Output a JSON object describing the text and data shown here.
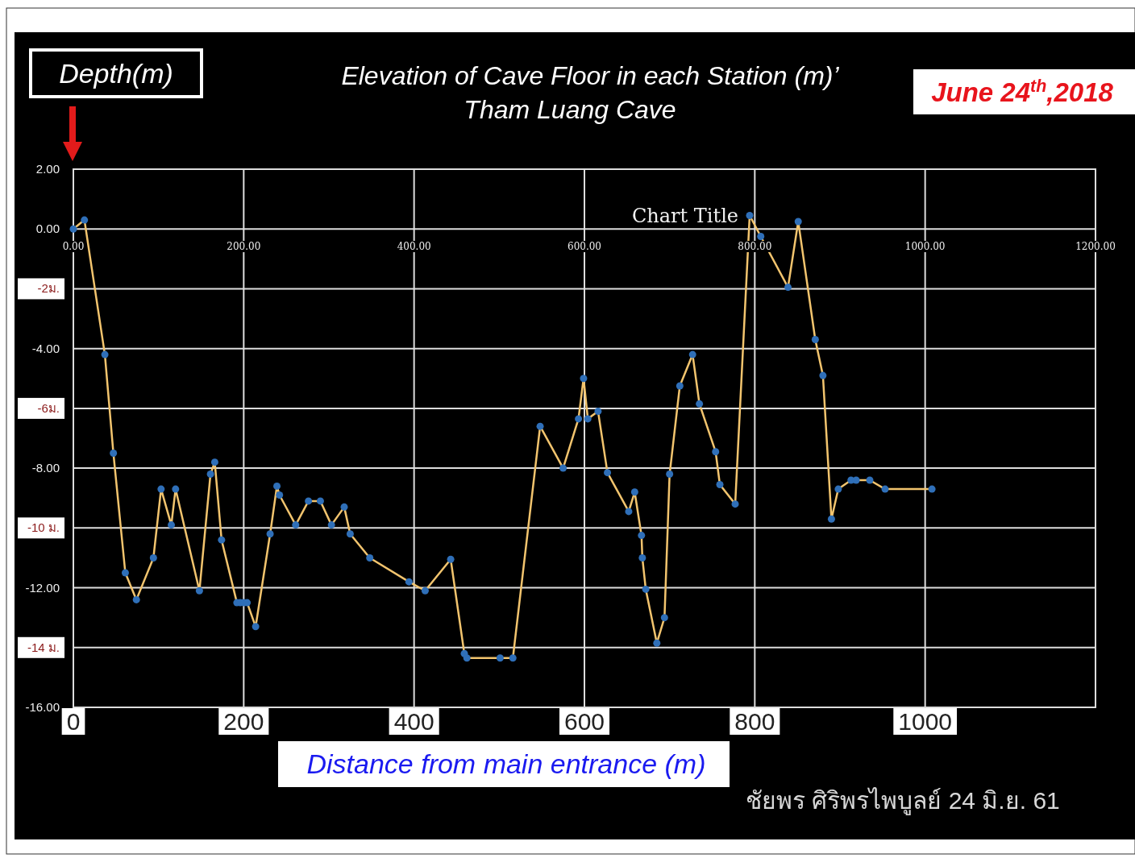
{
  "chart_data": {
    "type": "line",
    "title": "Elevation of Cave Floor in each Station (m)’",
    "subtitle": "Tham Luang Cave",
    "xlabel": "Distance from main entrance (m)",
    "ylabel": "Depth(m)",
    "annotations": [
      "Chart Title",
      "June 24$^{th}$,2018",
      "ชัยพร ศิริพรไพบูลย์ 24 มิ.ย. 61"
    ],
    "x": [
      0,
      13,
      37,
      47,
      61,
      74,
      94,
      103,
      115,
      120,
      148,
      161,
      166,
      174,
      192,
      196,
      200,
      204,
      214,
      231,
      239,
      242,
      261,
      276,
      290,
      303,
      318,
      325,
      348,
      394,
      413,
      443,
      459,
      462,
      501,
      516,
      548,
      575,
      593,
      599,
      604,
      616,
      627,
      652,
      659,
      667,
      668,
      672,
      685,
      694,
      700,
      712,
      727,
      735,
      754,
      759,
      777,
      794,
      807,
      839,
      851,
      871,
      880,
      890,
      898,
      913,
      919,
      935,
      953,
      1008
    ],
    "series": [
      {
        "color": "#f2c46e",
        "values": [
          0,
          0.3,
          -4.2,
          -7.5,
          -11.5,
          -12.4,
          -11,
          -8.7,
          -9.9,
          -8.7,
          -12.1,
          -8.2,
          -7.8,
          -10.4,
          -12.5,
          -12.5,
          -12.5,
          -12.5,
          -13.3,
          -10.2,
          -8.6,
          -8.9,
          -9.9,
          -9.1,
          -9.1,
          -9.9,
          -9.3,
          -10.2,
          -11,
          -11.8,
          -12.1,
          -11.05,
          -14.2,
          -14.35,
          -14.35,
          -14.35,
          -6.6,
          -8,
          -6.35,
          -5,
          -6.35,
          -6.1,
          -8.15,
          -9.45,
          -8.8,
          -10.25,
          -11,
          -12.05,
          -13.85,
          -13,
          -8.2,
          -5.25,
          -4.2,
          -5.85,
          -7.45,
          -8.55,
          -9.2,
          0.45,
          -0.25,
          -1.95,
          0.25,
          -3.7,
          -4.9,
          -9.7,
          -8.7,
          -8.4,
          -8.4,
          -8.4,
          -8.7,
          -8.7
        ]
      }
    ],
    "xlim": [
      0,
      1200
    ],
    "ylim": [
      -16,
      2
    ],
    "xticks": [
      0,
      200,
      400,
      600,
      800,
      1000,
      {
        "value": 1200,
        "label": null
      }
    ],
    "x2lim": [
      0,
      1200
    ],
    "x2ticks": [
      {
        "value": 0,
        "label": "0.00"
      },
      {
        "value": 200,
        "label": "200.00"
      },
      {
        "value": 400,
        "label": "400.00"
      },
      {
        "value": 600,
        "label": "600.00"
      },
      {
        "value": 800,
        "label": "800.00"
      },
      {
        "value": 1000,
        "label": "1000.00"
      },
      {
        "value": 1200,
        "label": "1200.00"
      }
    ],
    "yticks": [
      {
        "value": 2,
        "label": "2.00"
      },
      {
        "value": 0,
        "label": "0.00"
      },
      {
        "value": -2,
        "label": "-2ม."
      },
      {
        "value": -4,
        "label": "-4.00"
      },
      {
        "value": -6,
        "label": "-6ม."
      },
      {
        "value": -8,
        "label": "-8.00"
      },
      {
        "value": -10,
        "label": "-10 ม."
      },
      {
        "value": -12,
        "label": "-12.00"
      },
      {
        "value": -14,
        "label": "-14 ม."
      },
      {
        "value": -16,
        "label": "-16.00"
      }
    ],
    "grid": true,
    "marker": "circle",
    "line_style": "solid"
  }
}
